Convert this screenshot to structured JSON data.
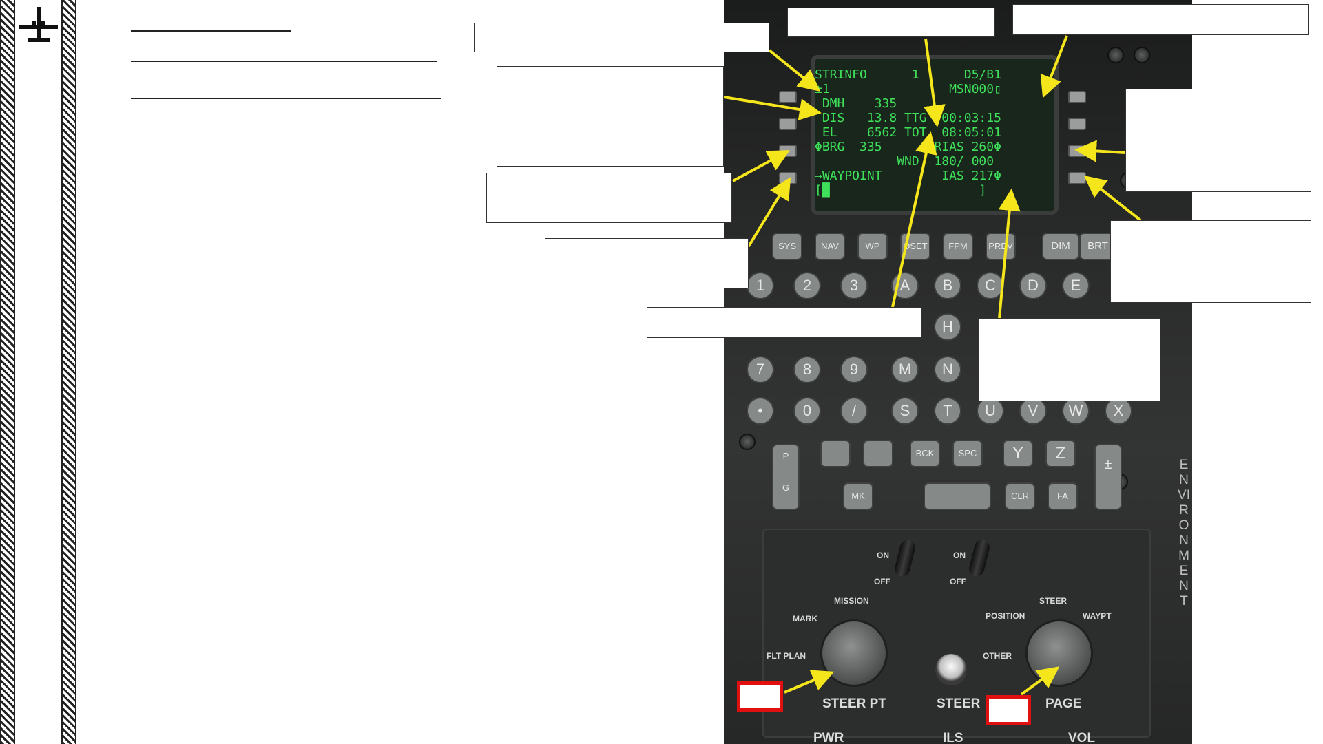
{
  "cdu": {
    "lines": [
      "STRINFO      1      D5/B1",
      "±1                MSN000▯",
      " DMH    335",
      " DIS   13.8 TTG  00:03:15",
      " EL    6562 TOT  08:05:01",
      "ΦBRG  335       RIAS 260Φ",
      "           WND  180/ 000",
      "→WAYPOINT        IAS 217Φ",
      "[█                    ]"
    ]
  },
  "function_keys": [
    "SYS",
    "NAV",
    "WP",
    "OSET",
    "FPM",
    "PREV",
    "DIM",
    "BRT"
  ],
  "number_keys": [
    "1",
    "2",
    "3",
    "7",
    "8",
    "9",
    "•",
    "0",
    "/"
  ],
  "letter_keys": [
    "A",
    "B",
    "C",
    "D",
    "E",
    "H",
    "M",
    "N",
    "S",
    "T",
    "U",
    "V",
    "W",
    "X",
    "Y",
    "Z"
  ],
  "misc_keys": [
    "BCK",
    "SPC",
    "MK",
    "CLR",
    "FA"
  ],
  "pg_rocker": [
    "P",
    "G"
  ],
  "vertical_label": "ENVIRONMENT",
  "panel": {
    "on": "ON",
    "off": "OFF",
    "mission": "MISSION",
    "mark": "MARK",
    "flt_plan": "FLT PLAN",
    "steer_pt": "STEER PT",
    "steer": "STEER",
    "steer_top": "STEER",
    "position": "POSITION",
    "waypt": "WAYPT",
    "other": "OTHER",
    "page": "PAGE",
    "pwr": "PWR",
    "ils": "ILS",
    "vol": "VOL"
  },
  "colors": {
    "arrow": "#f5e61c",
    "screen_text": "#3fe05a",
    "red_box": "#e01010"
  },
  "icons": [
    "aircraft-icon"
  ]
}
